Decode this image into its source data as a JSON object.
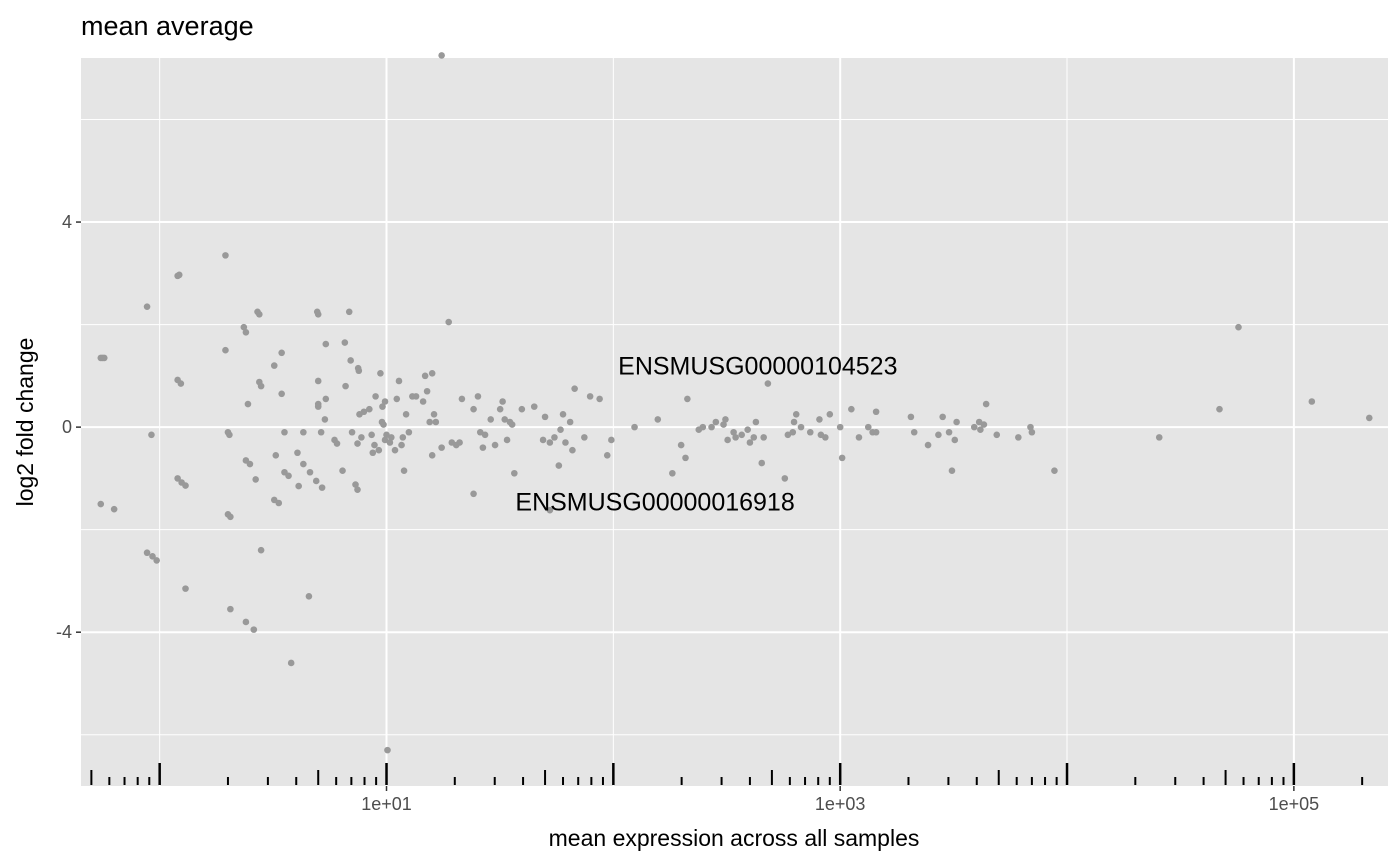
{
  "chart_data": {
    "type": "scatter",
    "title": "mean average",
    "xlabel": "mean expression across all samples",
    "ylabel": "log2 fold change",
    "x_scale": "log10",
    "xlim": [
      0.45,
      260000
    ],
    "ylim": [
      -7,
      7.2
    ],
    "x_ticks": [
      10,
      1000,
      100000
    ],
    "x_tick_labels": [
      "1e+01",
      "1e+03",
      "1e+05"
    ],
    "y_ticks": [
      -4,
      0,
      4
    ],
    "y_tick_labels": [
      "-4",
      "0",
      "4"
    ],
    "grid": true,
    "rug": true,
    "point_color": "#999999",
    "panel_color": "#e5e5e5",
    "grid_color": "#ffffff",
    "annotations": [
      {
        "text": "ENSMUSG00000104523",
        "x": 105,
        "y": 1.2
      },
      {
        "text": "ENSMUSG00000016918",
        "x": 37,
        "y": -1.45
      }
    ],
    "points": [
      {
        "x": 0.55,
        "y": 1.35
      },
      {
        "x": 0.56,
        "y": 1.35
      },
      {
        "x": 0.57,
        "y": 1.35
      },
      {
        "x": 0.55,
        "y": -1.5
      },
      {
        "x": 0.63,
        "y": -1.6
      },
      {
        "x": 0.88,
        "y": 2.35
      },
      {
        "x": 0.92,
        "y": -0.15
      },
      {
        "x": 0.88,
        "y": -2.45
      },
      {
        "x": 0.93,
        "y": -2.52
      },
      {
        "x": 0.97,
        "y": -2.6
      },
      {
        "x": 1.2,
        "y": 2.95
      },
      {
        "x": 1.22,
        "y": 2.97
      },
      {
        "x": 1.2,
        "y": 0.92
      },
      {
        "x": 1.24,
        "y": 0.85
      },
      {
        "x": 1.2,
        "y": -1.0
      },
      {
        "x": 1.25,
        "y": -1.08
      },
      {
        "x": 1.3,
        "y": -1.14
      },
      {
        "x": 1.3,
        "y": -3.15
      },
      {
        "x": 1.95,
        "y": 3.35
      },
      {
        "x": 1.95,
        "y": 1.5
      },
      {
        "x": 2.0,
        "y": -0.1
      },
      {
        "x": 2.03,
        "y": -0.15
      },
      {
        "x": 2.0,
        "y": -1.7
      },
      {
        "x": 2.05,
        "y": -1.75
      },
      {
        "x": 2.05,
        "y": -3.55
      },
      {
        "x": 2.35,
        "y": 1.95
      },
      {
        "x": 2.4,
        "y": 1.85
      },
      {
        "x": 2.45,
        "y": 0.45
      },
      {
        "x": 2.4,
        "y": -0.65
      },
      {
        "x": 2.5,
        "y": -0.72
      },
      {
        "x": 2.65,
        "y": -1.02
      },
      {
        "x": 2.7,
        "y": 2.25
      },
      {
        "x": 2.75,
        "y": 2.2
      },
      {
        "x": 2.75,
        "y": 0.88
      },
      {
        "x": 2.8,
        "y": 0.8
      },
      {
        "x": 2.8,
        "y": -2.4
      },
      {
        "x": 2.4,
        "y": -3.8
      },
      {
        "x": 2.6,
        "y": -3.95
      },
      {
        "x": 3.2,
        "y": 1.2
      },
      {
        "x": 3.25,
        "y": -0.55
      },
      {
        "x": 3.2,
        "y": -1.42
      },
      {
        "x": 3.35,
        "y": -1.48
      },
      {
        "x": 3.45,
        "y": 1.45
      },
      {
        "x": 3.45,
        "y": 0.65
      },
      {
        "x": 3.55,
        "y": -0.1
      },
      {
        "x": 3.55,
        "y": -0.88
      },
      {
        "x": 3.7,
        "y": -0.95
      },
      {
        "x": 3.8,
        "y": -4.6
      },
      {
        "x": 4.05,
        "y": -0.5
      },
      {
        "x": 4.1,
        "y": -1.15
      },
      {
        "x": 4.3,
        "y": -0.1
      },
      {
        "x": 4.3,
        "y": -0.72
      },
      {
        "x": 4.55,
        "y": -3.3
      },
      {
        "x": 4.6,
        "y": -0.88
      },
      {
        "x": 4.9,
        "y": -1.05
      },
      {
        "x": 4.95,
        "y": 2.25
      },
      {
        "x": 5.0,
        "y": 2.2
      },
      {
        "x": 5.0,
        "y": 0.9
      },
      {
        "x": 5.0,
        "y": 0.45
      },
      {
        "x": 5.0,
        "y": 0.4
      },
      {
        "x": 5.15,
        "y": -0.1
      },
      {
        "x": 5.2,
        "y": -1.18
      },
      {
        "x": 5.4,
        "y": 1.62
      },
      {
        "x": 5.4,
        "y": 0.55
      },
      {
        "x": 5.35,
        "y": 0.15
      },
      {
        "x": 5.9,
        "y": -0.25
      },
      {
        "x": 6.05,
        "y": -0.32
      },
      {
        "x": 6.4,
        "y": -0.85
      },
      {
        "x": 6.55,
        "y": 1.65
      },
      {
        "x": 6.6,
        "y": 0.8
      },
      {
        "x": 6.85,
        "y": 2.25
      },
      {
        "x": 6.95,
        "y": 1.3
      },
      {
        "x": 7.05,
        "y": -0.1
      },
      {
        "x": 7.3,
        "y": -1.12
      },
      {
        "x": 7.45,
        "y": -1.22
      },
      {
        "x": 7.5,
        "y": 1.15
      },
      {
        "x": 7.55,
        "y": 1.1
      },
      {
        "x": 7.45,
        "y": -0.32
      },
      {
        "x": 7.6,
        "y": 0.25
      },
      {
        "x": 7.75,
        "y": -0.2
      },
      {
        "x": 7.95,
        "y": 0.3
      },
      {
        "x": 8.4,
        "y": 0.35
      },
      {
        "x": 8.6,
        "y": -0.15
      },
      {
        "x": 8.7,
        "y": -0.5
      },
      {
        "x": 8.85,
        "y": -0.35
      },
      {
        "x": 8.95,
        "y": 0.6
      },
      {
        "x": 9.25,
        "y": -0.45
      },
      {
        "x": 9.4,
        "y": 1.05
      },
      {
        "x": 9.55,
        "y": 0.1
      },
      {
        "x": 9.7,
        "y": 0.05
      },
      {
        "x": 9.6,
        "y": 0.4
      },
      {
        "x": 9.85,
        "y": 0.5
      },
      {
        "x": 9.85,
        "y": -0.25
      },
      {
        "x": 10.0,
        "y": -0.15
      },
      {
        "x": 10.1,
        "y": -6.3
      },
      {
        "x": 10.35,
        "y": -0.3
      },
      {
        "x": 10.5,
        "y": -0.2
      },
      {
        "x": 10.9,
        "y": -0.45
      },
      {
        "x": 11.1,
        "y": 0.55
      },
      {
        "x": 11.35,
        "y": 0.9
      },
      {
        "x": 11.65,
        "y": -0.35
      },
      {
        "x": 11.8,
        "y": -0.2
      },
      {
        "x": 11.95,
        "y": -0.85
      },
      {
        "x": 12.2,
        "y": 0.25
      },
      {
        "x": 12.55,
        "y": -0.1
      },
      {
        "x": 13.0,
        "y": 0.6
      },
      {
        "x": 13.5,
        "y": 0.6
      },
      {
        "x": 14.5,
        "y": 0.5
      },
      {
        "x": 14.8,
        "y": 1.0
      },
      {
        "x": 15.1,
        "y": 0.7
      },
      {
        "x": 15.5,
        "y": 0.1
      },
      {
        "x": 15.9,
        "y": 1.05
      },
      {
        "x": 15.9,
        "y": -0.55
      },
      {
        "x": 16.2,
        "y": 0.25
      },
      {
        "x": 16.5,
        "y": 0.1
      },
      {
        "x": 17.5,
        "y": 7.25
      },
      {
        "x": 17.5,
        "y": -0.4
      },
      {
        "x": 18.8,
        "y": 2.05
      },
      {
        "x": 19.4,
        "y": -0.3
      },
      {
        "x": 20.3,
        "y": -0.35
      },
      {
        "x": 21.0,
        "y": -0.3
      },
      {
        "x": 21.5,
        "y": 0.55
      },
      {
        "x": 24.2,
        "y": 0.35
      },
      {
        "x": 24.2,
        "y": -1.3
      },
      {
        "x": 25.3,
        "y": 0.6
      },
      {
        "x": 25.9,
        "y": -0.1
      },
      {
        "x": 26.6,
        "y": -0.4
      },
      {
        "x": 27.2,
        "y": -0.15
      },
      {
        "x": 28.8,
        "y": 0.15
      },
      {
        "x": 30.1,
        "y": -0.35
      },
      {
        "x": 31.7,
        "y": 0.35
      },
      {
        "x": 32.5,
        "y": 0.5
      },
      {
        "x": 33.2,
        "y": 0.15
      },
      {
        "x": 34.0,
        "y": -0.25
      },
      {
        "x": 35.0,
        "y": 0.1
      },
      {
        "x": 35.8,
        "y": 0.05
      },
      {
        "x": 36.6,
        "y": -0.9
      },
      {
        "x": 39.5,
        "y": 0.35
      },
      {
        "x": 44.8,
        "y": 0.4
      },
      {
        "x": 49.0,
        "y": -0.25
      },
      {
        "x": 50.0,
        "y": 0.2
      },
      {
        "x": 52.5,
        "y": -0.3
      },
      {
        "x": 52.5,
        "y": -1.62
      },
      {
        "x": 55.0,
        "y": -0.2
      },
      {
        "x": 57.5,
        "y": -0.75
      },
      {
        "x": 58.5,
        "y": -0.05
      },
      {
        "x": 60.0,
        "y": 0.25
      },
      {
        "x": 61.5,
        "y": -0.3
      },
      {
        "x": 64.5,
        "y": 0.1
      },
      {
        "x": 66.0,
        "y": -0.45
      },
      {
        "x": 67.5,
        "y": 0.75
      },
      {
        "x": 74.5,
        "y": -0.2
      },
      {
        "x": 79.0,
        "y": 0.6
      },
      {
        "x": 87.0,
        "y": 0.55
      },
      {
        "x": 94.0,
        "y": -0.55
      },
      {
        "x": 98.0,
        "y": -0.25
      },
      {
        "x": 124.0,
        "y": 0.0
      },
      {
        "x": 157.0,
        "y": 0.15
      },
      {
        "x": 182.0,
        "y": -0.9
      },
      {
        "x": 199.0,
        "y": -0.35
      },
      {
        "x": 208.0,
        "y": -0.6
      },
      {
        "x": 212.0,
        "y": 0.55
      },
      {
        "x": 238.0,
        "y": -0.05
      },
      {
        "x": 248.0,
        "y": 0.0
      },
      {
        "x": 271.0,
        "y": 0.0
      },
      {
        "x": 283.0,
        "y": 0.1
      },
      {
        "x": 306.0,
        "y": 0.05
      },
      {
        "x": 312.0,
        "y": 0.15
      },
      {
        "x": 319.0,
        "y": -0.25
      },
      {
        "x": 339.0,
        "y": -0.1
      },
      {
        "x": 346.0,
        "y": -0.2
      },
      {
        "x": 368.0,
        "y": -0.15
      },
      {
        "x": 391.0,
        "y": -0.05
      },
      {
        "x": 400.0,
        "y": -0.3
      },
      {
        "x": 416.0,
        "y": -0.2
      },
      {
        "x": 425.0,
        "y": 0.1
      },
      {
        "x": 451.0,
        "y": -0.7
      },
      {
        "x": 460.0,
        "y": -0.2
      },
      {
        "x": 480.0,
        "y": 0.85
      },
      {
        "x": 570.0,
        "y": -1.0
      },
      {
        "x": 588.0,
        "y": -0.15
      },
      {
        "x": 618.0,
        "y": -0.1
      },
      {
        "x": 626.0,
        "y": 0.1
      },
      {
        "x": 640.0,
        "y": 0.25
      },
      {
        "x": 672.0,
        "y": 0.0
      },
      {
        "x": 738.0,
        "y": -0.1
      },
      {
        "x": 810.0,
        "y": 0.15
      },
      {
        "x": 822.0,
        "y": -0.15
      },
      {
        "x": 860.0,
        "y": -0.2
      },
      {
        "x": 900.0,
        "y": 0.25
      },
      {
        "x": 1000.0,
        "y": 0.0
      },
      {
        "x": 1020.0,
        "y": -0.6
      },
      {
        "x": 1120.0,
        "y": 0.35
      },
      {
        "x": 1210.0,
        "y": -0.2
      },
      {
        "x": 1330.0,
        "y": 0.0
      },
      {
        "x": 1390.0,
        "y": -0.1
      },
      {
        "x": 1440.0,
        "y": 0.3
      },
      {
        "x": 1440.0,
        "y": -0.1
      },
      {
        "x": 2050.0,
        "y": 0.2
      },
      {
        "x": 2120.0,
        "y": -0.1
      },
      {
        "x": 2440.0,
        "y": -0.35
      },
      {
        "x": 2710.0,
        "y": -0.15
      },
      {
        "x": 2830.0,
        "y": 0.2
      },
      {
        "x": 3020.0,
        "y": -0.1
      },
      {
        "x": 3110.0,
        "y": -0.85
      },
      {
        "x": 3200.0,
        "y": -0.25
      },
      {
        "x": 3260.0,
        "y": 0.1
      },
      {
        "x": 3900.0,
        "y": 0.0
      },
      {
        "x": 4100.0,
        "y": 0.1
      },
      {
        "x": 4150.0,
        "y": -0.05
      },
      {
        "x": 4300.0,
        "y": 0.05
      },
      {
        "x": 4400.0,
        "y": 0.45
      },
      {
        "x": 4900.0,
        "y": -0.15
      },
      {
        "x": 6100.0,
        "y": -0.2
      },
      {
        "x": 6900.0,
        "y": 0.0
      },
      {
        "x": 7000.0,
        "y": -0.1
      },
      {
        "x": 8800.0,
        "y": -0.85
      },
      {
        "x": 25500.0,
        "y": -0.2
      },
      {
        "x": 47000.0,
        "y": 0.35
      },
      {
        "x": 57000.0,
        "y": 1.95
      },
      {
        "x": 120000.0,
        "y": 0.5
      },
      {
        "x": 215000.0,
        "y": 0.18
      }
    ],
    "rug_x": [
      0.5,
      0.6,
      0.7,
      0.8,
      0.9,
      1,
      2,
      3,
      4,
      5,
      6,
      7,
      8,
      9,
      10,
      20,
      30,
      40,
      50,
      60,
      70,
      80,
      90,
      100,
      200,
      300,
      400,
      500,
      600,
      700,
      800,
      900,
      1000,
      2000,
      3000,
      4000,
      5000,
      6000,
      7000,
      8000,
      9000,
      10000,
      20000,
      30000,
      40000,
      50000,
      60000,
      70000,
      80000,
      90000,
      100000,
      200000
    ]
  }
}
